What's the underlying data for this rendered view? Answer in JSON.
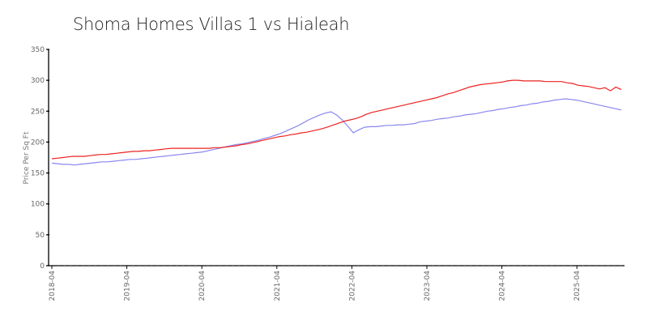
{
  "chart_data": {
    "type": "line",
    "title": "Shoma Homes Villas 1 vs Hialeah",
    "xlabel": "",
    "ylabel": "Price Per Sq Ft",
    "ylim": [
      0,
      350
    ],
    "yticks": [
      0,
      50,
      100,
      150,
      200,
      250,
      300,
      350
    ],
    "x_start": "2018-04",
    "x_interval": "monthly",
    "xtick_labels": [
      "2018-04",
      "2019-04",
      "2020-04",
      "2021-04",
      "2022-04",
      "2023-04",
      "2024-04",
      "2025-04"
    ],
    "grid": false,
    "legend": null,
    "series": [
      {
        "name": "Shoma Homes Villas 1",
        "color": "#ee2222",
        "values": [
          173,
          174,
          175,
          176,
          177,
          177,
          177,
          178,
          179,
          180,
          180,
          181,
          182,
          183,
          184,
          185,
          185,
          186,
          186,
          187,
          188,
          189,
          190,
          190,
          190,
          190,
          190,
          190,
          190,
          190,
          191,
          191,
          192,
          193,
          194,
          196,
          197,
          199,
          201,
          203,
          205,
          207,
          209,
          210,
          212,
          213,
          215,
          216,
          218,
          220,
          222,
          225,
          228,
          231,
          234,
          236,
          238,
          241,
          245,
          248,
          250,
          252,
          254,
          256,
          258,
          260,
          262,
          264,
          266,
          268,
          270,
          272,
          275,
          278,
          280,
          283,
          286,
          289,
          291,
          293,
          294,
          295,
          296,
          297,
          299,
          300,
          300,
          299,
          299,
          299,
          299,
          298,
          298,
          298,
          298,
          296,
          295,
          292,
          291,
          290,
          288,
          286,
          288,
          283,
          289,
          285
        ]
      },
      {
        "name": "Hialeah",
        "color": "#8888ee",
        "values": [
          166,
          165,
          164,
          164,
          163,
          164,
          165,
          166,
          167,
          168,
          168,
          169,
          170,
          171,
          172,
          172,
          173,
          174,
          175,
          176,
          177,
          178,
          179,
          180,
          181,
          182,
          183,
          184,
          186,
          188,
          190,
          192,
          194,
          196,
          197,
          199,
          201,
          203,
          206,
          208,
          211,
          214,
          218,
          222,
          226,
          231,
          236,
          240,
          244,
          247,
          249,
          244,
          236,
          226,
          215,
          220,
          224,
          225,
          225,
          226,
          227,
          227,
          228,
          228,
          229,
          230,
          233,
          234,
          235,
          237,
          238,
          239,
          241,
          242,
          244,
          245,
          246,
          248,
          250,
          251,
          253,
          254,
          256,
          257,
          259,
          260,
          262,
          263,
          265,
          266,
          268,
          269,
          270,
          269,
          268,
          266,
          264,
          262,
          260,
          258,
          256,
          254,
          252
        ]
      }
    ]
  }
}
